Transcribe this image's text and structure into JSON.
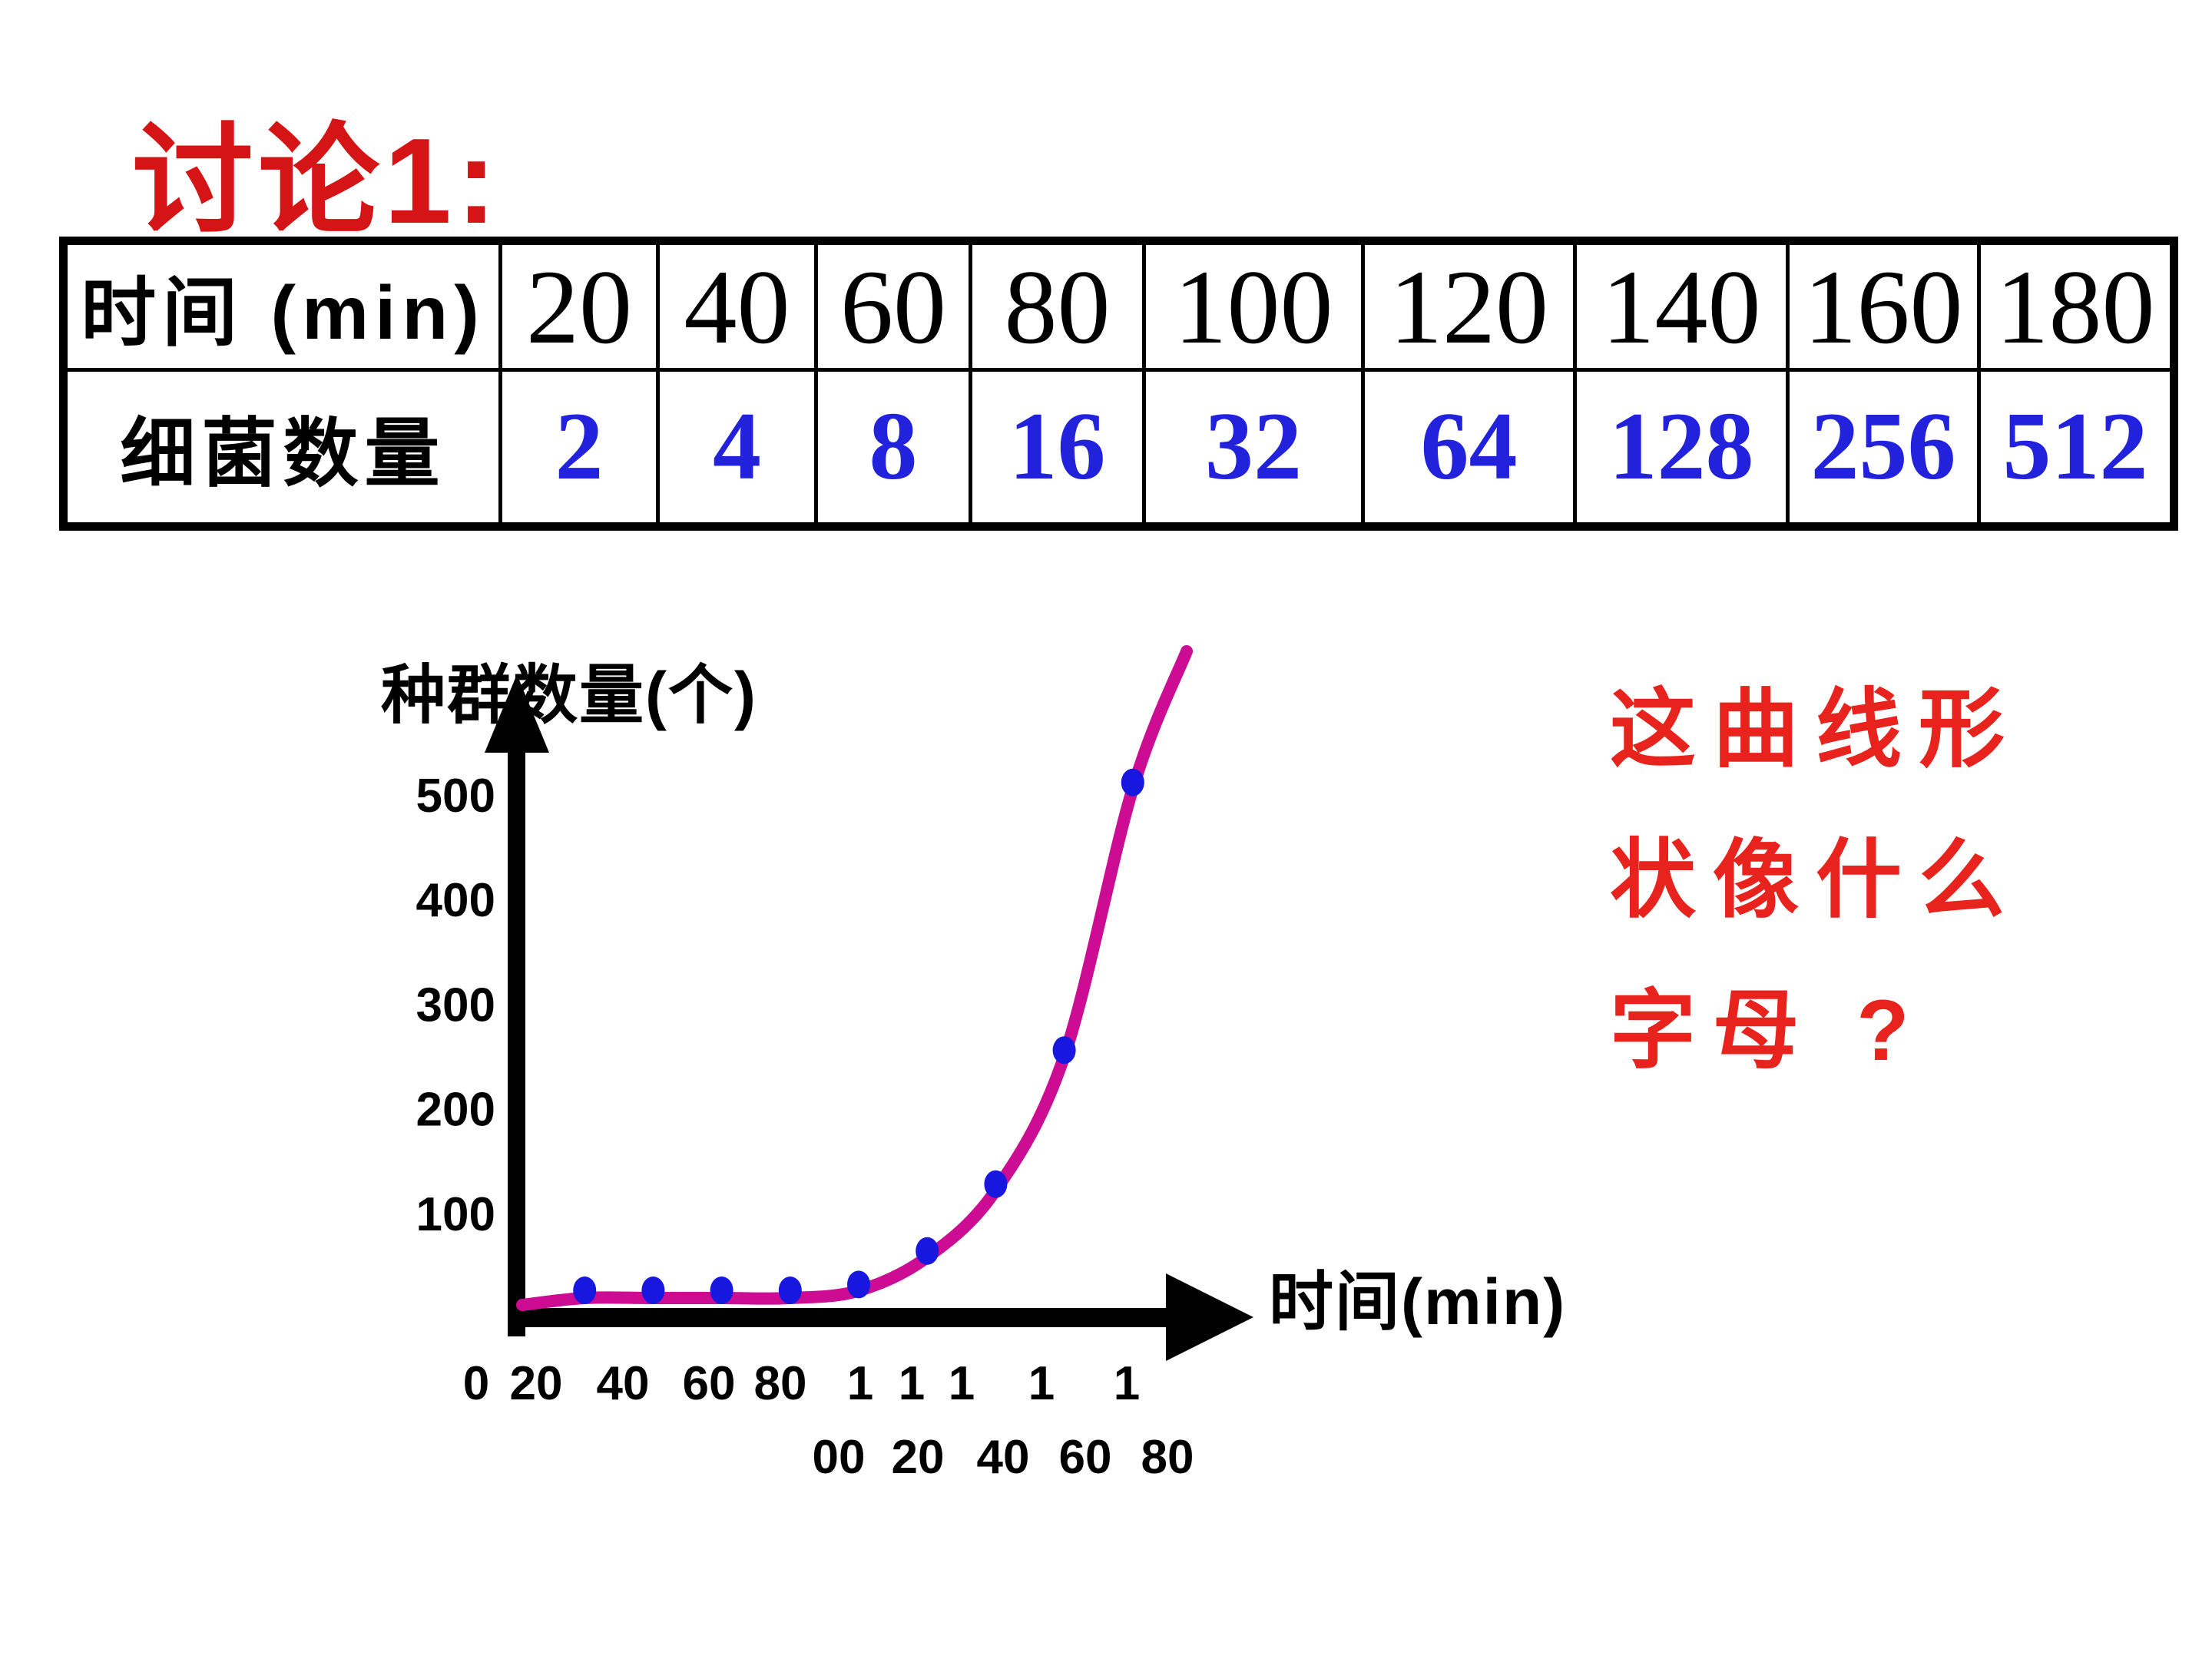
{
  "slide": {
    "title": "讨论1:"
  },
  "table": {
    "header_label": "时间 (min)",
    "row_label": "细菌数量",
    "times": [
      "20",
      "40",
      "60",
      "80",
      "100",
      "120",
      "140",
      "160",
      "180"
    ],
    "counts": [
      "2",
      "4",
      "8",
      "16",
      "32",
      "64",
      "128",
      "256",
      "512"
    ]
  },
  "question": {
    "lines": [
      "这曲线形",
      "状像什么",
      "字母 ?"
    ]
  },
  "chart_data": {
    "type": "line",
    "series_name": "细菌数量",
    "x": [
      20,
      40,
      60,
      80,
      100,
      120,
      140,
      160,
      180
    ],
    "y": [
      2,
      4,
      8,
      16,
      32,
      64,
      128,
      256,
      512
    ],
    "xlabel": "时间(min)",
    "ylabel": "种群数量(个)",
    "x_ticks": [
      0,
      20,
      40,
      60,
      80,
      100,
      120,
      140,
      160,
      180
    ],
    "y_ticks": [
      500,
      400,
      300,
      200,
      100
    ],
    "x_tick_rows": {
      "row1": [
        "0",
        "20",
        "40",
        "60",
        "80",
        "1",
        "1",
        "1",
        "1",
        "1"
      ],
      "row2": [
        "00",
        "20",
        "40",
        "60",
        "80"
      ]
    },
    "xlim": [
      0,
      200
    ],
    "ylim": [
      0,
      560
    ],
    "grid": false,
    "legend": false,
    "curve_shape": "J-shaped exponential growth",
    "curve_color": "#cc0c92",
    "point_color": "#1717e0"
  },
  "colors": {
    "title_red": "#d51515",
    "question_red": "#e8231d",
    "value_blue": "#2222dd",
    "axis_black": "#000000"
  }
}
